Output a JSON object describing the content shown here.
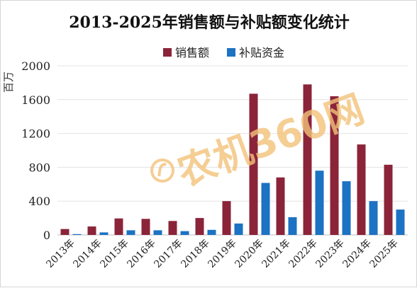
{
  "chart_data": {
    "type": "bar",
    "title": "2013-2025年销售额与补贴额变化统计",
    "ylabel": "百万",
    "xlabel": "",
    "categories": [
      "2013年",
      "2014年",
      "2015年",
      "2016年",
      "2017年",
      "2018年",
      "2019年",
      "2020年",
      "2021年",
      "2022年",
      "2023年",
      "2024年",
      "2025年"
    ],
    "series": [
      {
        "name": "销售额",
        "color": "#8b2439",
        "values": [
          70,
          100,
          195,
          190,
          165,
          200,
          400,
          1670,
          680,
          1780,
          1640,
          1070,
          830
        ]
      },
      {
        "name": "补贴资金",
        "color": "#1c72c3",
        "values": [
          10,
          30,
          55,
          55,
          45,
          60,
          135,
          615,
          210,
          760,
          635,
          400,
          300
        ]
      }
    ],
    "ylim": [
      0,
      2000
    ],
    "yticks": [
      "0",
      "400",
      "800",
      "1200",
      "1600",
      "2000"
    ],
    "ytick_values": [
      0,
      400,
      800,
      1200,
      1600,
      2000
    ],
    "grid": true,
    "legend_position": "top-center"
  },
  "watermark": {
    "text": "农机360网",
    "color": "#f3c27a"
  }
}
